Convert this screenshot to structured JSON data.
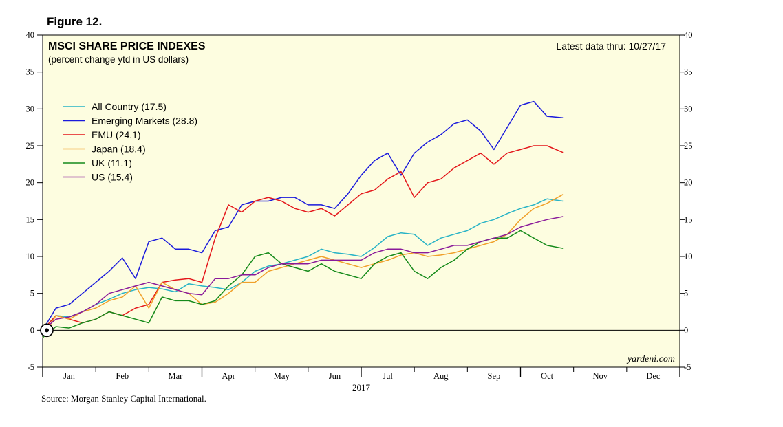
{
  "figure_label": "Figure 12.",
  "source": "Source: Morgan Stanley Capital International.",
  "watermark": "yardeni.com",
  "chart_data": {
    "type": "line",
    "title": "MSCI SHARE PRICE INDEXES",
    "subtitle": "(percent change ytd in US dollars)",
    "note": "Latest data thru: 10/27/17",
    "year_label": "2017",
    "xlabel": "",
    "ylabel": "",
    "ylim": [
      -5,
      40
    ],
    "yticks": [
      -5,
      0,
      5,
      10,
      15,
      20,
      25,
      30,
      35,
      40
    ],
    "month_labels": [
      "Jan",
      "Feb",
      "Mar",
      "Apr",
      "May",
      "Jun",
      "Jul",
      "Aug",
      "Sep",
      "Oct",
      "Nov",
      "Dec"
    ],
    "legend_position": "upper-left",
    "grid": false,
    "colors": {
      "background": "#fdfde0",
      "zero_line": "#000000"
    },
    "x_unit": "month (0 = Jan 1, 12 = Dec 31)",
    "series": [
      {
        "name": "All Country (17.5)",
        "color": "#27b3c6",
        "x": [
          0,
          0.25,
          0.5,
          0.75,
          1,
          1.25,
          1.5,
          1.75,
          2,
          2.25,
          2.5,
          2.75,
          3,
          3.25,
          3.5,
          3.75,
          4,
          4.25,
          4.5,
          4.75,
          5,
          5.25,
          5.5,
          5.75,
          6,
          6.25,
          6.5,
          6.75,
          7,
          7.25,
          7.5,
          7.75,
          8,
          8.25,
          8.5,
          8.75,
          9,
          9.25,
          9.5,
          9.8
        ],
        "y": [
          0,
          2,
          1.8,
          2.5,
          3.5,
          4.2,
          5.0,
          5.5,
          5.8,
          5.6,
          5.2,
          6.3,
          6.0,
          5.8,
          5.5,
          6.5,
          8.0,
          8.7,
          9.0,
          9.5,
          10.0,
          11.0,
          10.5,
          10.3,
          10.0,
          11.2,
          12.7,
          13.2,
          13.0,
          11.5,
          12.5,
          13.0,
          13.5,
          14.5,
          15.0,
          15.8,
          16.5,
          17.0,
          17.8,
          17.5
        ]
      },
      {
        "name": "Emerging Markets (28.8)",
        "color": "#1a1adc",
        "x": [
          0,
          0.25,
          0.5,
          0.75,
          1,
          1.25,
          1.5,
          1.75,
          2,
          2.25,
          2.5,
          2.75,
          3,
          3.25,
          3.5,
          3.75,
          4,
          4.25,
          4.5,
          4.75,
          5,
          5.25,
          5.5,
          5.75,
          6,
          6.25,
          6.5,
          6.75,
          7,
          7.25,
          7.5,
          7.75,
          8,
          8.25,
          8.5,
          8.75,
          9,
          9.25,
          9.5,
          9.8
        ],
        "y": [
          0,
          3,
          3.5,
          5,
          6.5,
          8.0,
          9.8,
          7.0,
          12.0,
          12.5,
          11.0,
          11.0,
          10.5,
          13.5,
          14.0,
          17.0,
          17.5,
          17.5,
          18.0,
          18.0,
          17.0,
          17.0,
          16.5,
          18.5,
          21.0,
          23.0,
          24.0,
          21.0,
          24.0,
          25.5,
          26.5,
          28.0,
          28.5,
          27.0,
          24.5,
          27.5,
          30.5,
          31.0,
          29.0,
          28.8
        ]
      },
      {
        "name": "EMU (24.1)",
        "color": "#e4171b",
        "x": [
          0,
          0.25,
          0.5,
          0.75,
          1,
          1.25,
          1.5,
          1.75,
          2,
          2.25,
          2.5,
          2.75,
          3,
          3.25,
          3.5,
          3.75,
          4,
          4.25,
          4.5,
          4.75,
          5,
          5.25,
          5.5,
          5.75,
          6,
          6.25,
          6.5,
          6.75,
          7,
          7.25,
          7.5,
          7.75,
          8,
          8.25,
          8.5,
          8.75,
          9,
          9.25,
          9.5,
          9.8
        ],
        "y": [
          0,
          2,
          1.5,
          1.0,
          1.5,
          2.5,
          2.0,
          3.0,
          3.5,
          6.5,
          6.8,
          7.0,
          6.5,
          12.5,
          17.0,
          16.0,
          17.5,
          18.0,
          17.5,
          16.5,
          16.0,
          16.5,
          15.5,
          17.0,
          18.5,
          19.0,
          20.5,
          21.5,
          18.0,
          20.0,
          20.5,
          22.0,
          23.0,
          24.0,
          22.5,
          24.0,
          24.5,
          25.0,
          25.0,
          24.1
        ]
      },
      {
        "name": "Japan (18.4)",
        "color": "#f0a02a",
        "x": [
          0,
          0.25,
          0.5,
          0.75,
          1,
          1.25,
          1.5,
          1.75,
          2,
          2.25,
          2.5,
          2.75,
          3,
          3.25,
          3.5,
          3.75,
          4,
          4.25,
          4.5,
          4.75,
          5,
          5.25,
          5.5,
          5.75,
          6,
          6.25,
          6.5,
          6.75,
          7,
          7.25,
          7.5,
          7.75,
          8,
          8.25,
          8.5,
          8.75,
          9,
          9.25,
          9.5,
          9.8
        ],
        "y": [
          -1,
          2,
          1.5,
          2.5,
          3.0,
          4.0,
          4.5,
          6.0,
          3.0,
          6.5,
          5.5,
          5.0,
          3.5,
          3.8,
          5.0,
          6.5,
          6.5,
          8.0,
          8.5,
          9.0,
          9.5,
          10.0,
          9.5,
          9.0,
          8.5,
          9.0,
          9.5,
          10.2,
          10.5,
          10.0,
          10.2,
          10.5,
          11.0,
          11.5,
          12.0,
          13.0,
          15.0,
          16.5,
          17.2,
          18.4
        ]
      },
      {
        "name": "UK (11.1)",
        "color": "#158a1a",
        "x": [
          0,
          0.25,
          0.5,
          0.75,
          1,
          1.25,
          1.5,
          1.75,
          2,
          2.25,
          2.5,
          2.75,
          3,
          3.25,
          3.5,
          3.75,
          4,
          4.25,
          4.5,
          4.75,
          5,
          5.25,
          5.5,
          5.75,
          6,
          6.25,
          6.5,
          6.75,
          7,
          7.25,
          7.5,
          7.75,
          8,
          8.25,
          8.5,
          8.75,
          9,
          9.25,
          9.5,
          9.8
        ],
        "y": [
          -1,
          0.5,
          0.3,
          1.0,
          1.5,
          2.5,
          2.0,
          1.5,
          1.0,
          4.5,
          4.0,
          4.0,
          3.5,
          4.0,
          6.0,
          7.5,
          10.0,
          10.5,
          9.0,
          8.5,
          8.0,
          9.0,
          8.0,
          7.5,
          7.0,
          9.0,
          10.0,
          10.5,
          8.0,
          7.0,
          8.5,
          9.5,
          11.0,
          12.0,
          12.5,
          12.5,
          13.5,
          12.5,
          11.5,
          11.1
        ]
      },
      {
        "name": "US (15.4)",
        "color": "#8a1a9a",
        "x": [
          0,
          0.25,
          0.5,
          0.75,
          1,
          1.25,
          1.5,
          1.75,
          2,
          2.25,
          2.5,
          2.75,
          3,
          3.25,
          3.5,
          3.75,
          4,
          4.25,
          4.5,
          4.75,
          5,
          5.25,
          5.5,
          5.75,
          6,
          6.25,
          6.5,
          6.75,
          7,
          7.25,
          7.5,
          7.75,
          8,
          8.25,
          8.5,
          8.75,
          9,
          9.25,
          9.5,
          9.8
        ],
        "y": [
          0,
          1.5,
          1.8,
          2.5,
          3.5,
          5.0,
          5.5,
          6.0,
          6.5,
          6.0,
          5.5,
          5.0,
          4.8,
          7.0,
          7.0,
          7.5,
          7.5,
          8.5,
          9.0,
          9.0,
          9.0,
          9.5,
          9.5,
          9.5,
          9.5,
          10.5,
          11.0,
          11.0,
          10.5,
          10.5,
          11.0,
          11.5,
          11.5,
          12.0,
          12.5,
          13.0,
          14.0,
          14.5,
          15.0,
          15.4
        ]
      }
    ]
  }
}
